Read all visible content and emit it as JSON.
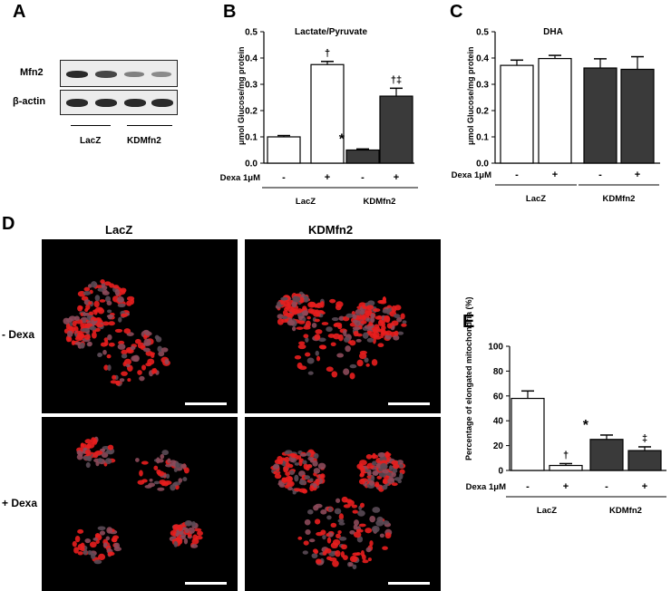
{
  "panels": {
    "A": "A",
    "B": "B",
    "C": "C",
    "D": "D",
    "E": "E"
  },
  "blot": {
    "labels": [
      "Mfn2",
      "β-actin"
    ],
    "groups": [
      "LacZ",
      "KDMfn2"
    ]
  },
  "micrographs": {
    "columns": [
      "LacZ",
      "KDMfn2"
    ],
    "rows": [
      "- Dexa",
      "+ Dexa"
    ]
  },
  "colors": {
    "open_bar": "#ffffff",
    "filled_bar": "#3a3a3a",
    "cell_red": "#e81e1e"
  },
  "chart_data": [
    {
      "panel": "B",
      "type": "bar",
      "title": "Lactate/Pyruvate",
      "ylabel": "μmol Glucose/mg protein",
      "ylim": [
        0,
        0.5
      ],
      "yticks": [
        "0.0",
        "0.1",
        "0.2",
        "0.3",
        "0.4",
        "0.5"
      ],
      "treatment_label": "Dexa 1μM",
      "treatment": [
        "-",
        "+",
        "-",
        "+"
      ],
      "groups": [
        "LacZ",
        "KDMfn2"
      ],
      "bar_colors": [
        "open",
        "open",
        "filled",
        "filled"
      ],
      "values": [
        0.1,
        0.375,
        0.05,
        0.255
      ],
      "errors": [
        0.005,
        0.012,
        0.004,
        0.03
      ],
      "annotations": [
        "",
        "†",
        "*",
        "†‡"
      ]
    },
    {
      "panel": "C",
      "type": "bar",
      "title": "DHA",
      "ylabel": "μmol Glucose/mg protein",
      "ylim": [
        0,
        0.5
      ],
      "yticks": [
        "0.0",
        "0.1",
        "0.2",
        "0.3",
        "0.4",
        "0.5"
      ],
      "treatment_label": "Dexa 1μM",
      "treatment": [
        "-",
        "+",
        "-",
        "+"
      ],
      "groups": [
        "LacZ",
        "KDMfn2"
      ],
      "bar_colors": [
        "open",
        "open",
        "filled",
        "filled"
      ],
      "values": [
        0.372,
        0.398,
        0.362,
        0.357
      ],
      "errors": [
        0.02,
        0.012,
        0.035,
        0.048
      ],
      "annotations": [
        "",
        "",
        "",
        ""
      ]
    },
    {
      "panel": "E",
      "type": "bar",
      "title": "",
      "ylabel": "Percentage of elongated mitochondria (%)",
      "ylim": [
        0,
        100
      ],
      "yticks": [
        "0",
        "20",
        "40",
        "60",
        "80",
        "100"
      ],
      "treatment_label": "Dexa 1μM",
      "treatment": [
        "-",
        "+",
        "-",
        "+"
      ],
      "groups": [
        "LacZ",
        "KDMfn2"
      ],
      "bar_colors": [
        "open",
        "open",
        "filled",
        "filled"
      ],
      "values": [
        58,
        4,
        25,
        16
      ],
      "errors": [
        6,
        1.5,
        3.5,
        3
      ],
      "annotations": [
        "",
        "†",
        "*",
        "‡"
      ]
    }
  ]
}
